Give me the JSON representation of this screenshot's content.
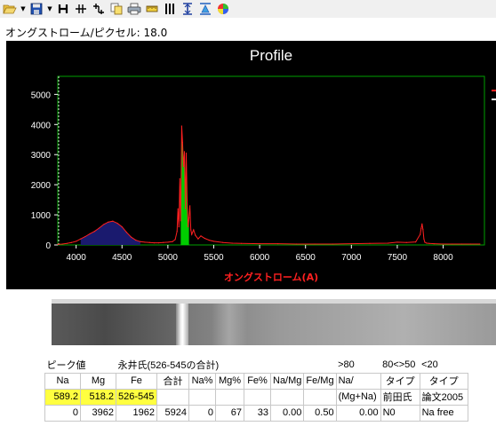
{
  "toolbar": {
    "icons": [
      "open-folder-icon",
      "dropdown-arrow-icon",
      "save-icon",
      "dropdown-arrow-icon",
      "h-icon",
      "split-icon",
      "merge-icon",
      "copy-icon",
      "print-icon",
      "ruler-icon",
      "bars-icon",
      "align-icon",
      "flip-icon",
      "color-wheel-icon"
    ]
  },
  "scale": {
    "label": "オングストローム/ピクセル: 18.0"
  },
  "chart_data": {
    "type": "area",
    "title": "Profile",
    "xlabel": "オングストローム(A)",
    "ylabel": "",
    "xlim": [
      3800,
      8450
    ],
    "ylim": [
      0,
      5600
    ],
    "xticks": [
      4000,
      4500,
      5000,
      5500,
      6000,
      6500,
      7000,
      7500,
      8000
    ],
    "yticks": [
      0,
      1000,
      2000,
      3000,
      4000,
      5000
    ],
    "grid": false,
    "colors": {
      "line": "#ff2020",
      "fill_left": "#1a1a6e",
      "fill_center": "#00cc00",
      "frame": "#00a000",
      "axis_title": "#ff2020"
    },
    "series": [
      {
        "x": [
          3800,
          3850,
          3900,
          3950,
          4000,
          4050,
          4100,
          4150,
          4200,
          4250,
          4300,
          4350,
          4400,
          4450,
          4500,
          4550,
          4600,
          4650,
          4700,
          4750,
          4800,
          4850,
          4900,
          4950,
          5000,
          5050,
          5080,
          5100,
          5110,
          5120,
          5130,
          5140,
          5150,
          5160,
          5170,
          5180,
          5190,
          5200,
          5210,
          5220,
          5230,
          5240,
          5250,
          5260,
          5280,
          5300,
          5330,
          5360,
          5400,
          5450,
          5500,
          5600,
          5700,
          5800,
          6000,
          6200,
          6400,
          6600,
          6800,
          7000,
          7200,
          7400,
          7500,
          7600,
          7700,
          7750,
          7760,
          7770,
          7780,
          7790,
          7800,
          7820,
          7850,
          7900,
          8000,
          8100,
          8200,
          8300,
          8400
        ],
        "y": [
          20,
          30,
          50,
          80,
          120,
          200,
          280,
          370,
          450,
          560,
          680,
          760,
          790,
          720,
          600,
          420,
          260,
          160,
          110,
          90,
          80,
          70,
          70,
          80,
          90,
          110,
          180,
          450,
          1200,
          600,
          2200,
          800,
          3950,
          3400,
          2600,
          3100,
          1200,
          3050,
          1500,
          600,
          900,
          1300,
          500,
          350,
          500,
          320,
          200,
          300,
          220,
          160,
          120,
          80,
          60,
          50,
          40,
          40,
          30,
          30,
          30,
          40,
          50,
          60,
          90,
          80,
          100,
          350,
          550,
          700,
          520,
          200,
          90,
          60,
          50,
          40,
          30,
          30,
          30,
          30,
          30
        ]
      }
    ]
  },
  "table": {
    "header_row": [
      "ピーク値",
      "永井氏(526-545の合計)",
      ">80",
      "80<>50",
      "<20"
    ],
    "columns": [
      "Na",
      "Mg",
      "Fe",
      "合計",
      "Na%",
      "Mg%",
      "Fe%",
      "Na/Mg",
      "Fe/Mg",
      "Na/",
      "タイプ",
      "タイプ"
    ],
    "row_peak": {
      "na": "589.2",
      "mg": "518.2",
      "fe": "526-545",
      "na_mg_formula": "(Mg+Na)",
      "type1": "前田氏",
      "type2": "論文2005"
    },
    "row_values": {
      "na": "0",
      "mg": "3962",
      "fe": "1962",
      "total": "5924",
      "na_pct": "0",
      "mg_pct": "67",
      "fe_pct": "33",
      "na_mg": "0.00",
      "fe_mg": "0.50",
      "na_mgna": "0.00",
      "type1": "N0",
      "type2": "Na free"
    }
  }
}
